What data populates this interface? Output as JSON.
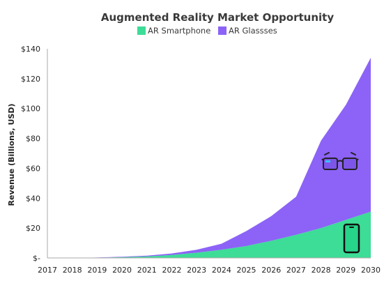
{
  "chart_data": {
    "type": "area",
    "stacked": true,
    "title": "Augmented Reality Market Opportunity",
    "xlabel": "",
    "ylabel": "Revenue (Billions, USD)",
    "x": [
      2017,
      2018,
      2019,
      2020,
      2021,
      2022,
      2023,
      2024,
      2025,
      2026,
      2027,
      2028,
      2029,
      2030
    ],
    "x_tick_labels": [
      "2017",
      "2018",
      "2019",
      "2020",
      "2021",
      "2022",
      "2023",
      "2024",
      "2025",
      "2026",
      "2027",
      "2028",
      "2029",
      "2030"
    ],
    "ylim": [
      0,
      140
    ],
    "y_ticks": [
      0,
      20,
      40,
      60,
      80,
      100,
      120,
      140
    ],
    "y_tick_labels": [
      "$-",
      "$20",
      "$40",
      "$60",
      "$80",
      "$100",
      "$120",
      "$140"
    ],
    "series": [
      {
        "name": "AR Smartphone",
        "color": "#3ddc97",
        "values": [
          0,
          0,
          0.2,
          0.5,
          1.0,
          2.0,
          3.5,
          5.5,
          8.0,
          11.5,
          15.5,
          20.0,
          25.5,
          31.0
        ]
      },
      {
        "name": "AR Glassses",
        "color": "#8c63f6",
        "values": [
          0,
          0,
          0.1,
          0.3,
          0.5,
          1.0,
          2.0,
          4.0,
          10.0,
          16.5,
          25.5,
          58.5,
          77.0,
          103.0
        ]
      }
    ],
    "grid": false,
    "legend_position": "top-center",
    "annotations": [
      {
        "icon": "ar-glasses-icon"
      },
      {
        "icon": "smartphone-icon"
      }
    ]
  }
}
